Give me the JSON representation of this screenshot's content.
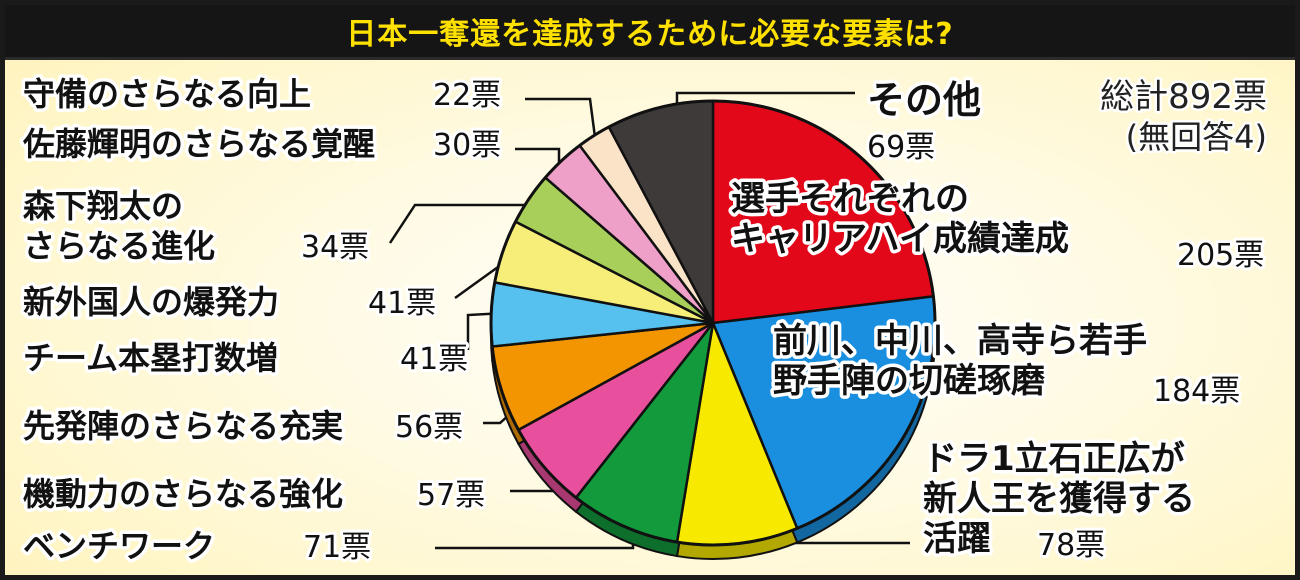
{
  "chart_data": {
    "type": "pie",
    "title": "日本一奪還を達成するために必要な要素は?",
    "total": "総計892票",
    "note": "(無回答4)",
    "unit": "票",
    "slices": [
      {
        "label": "選手それぞれのキャリアハイ成績達成",
        "lines": [
          "選手それぞれの",
          "キャリアハイ成績達成"
        ],
        "value": 205,
        "color": "#e3071a"
      },
      {
        "label": "前川、中川、高寺ら若手野手陣の切磋琢磨",
        "lines": [
          "前川、中川、高寺ら若手",
          "野手陣の切磋琢磨"
        ],
        "value": 184,
        "color": "#1a8fe0"
      },
      {
        "label": "ドラ1立石正広が新人王を獲得する活躍",
        "lines": [
          "ドラ1立石正広が",
          "新人王を獲得する",
          "活躍"
        ],
        "value": 78,
        "color": "#f7ea00"
      },
      {
        "label": "ベンチワーク",
        "lines": [
          "ベンチワーク"
        ],
        "value": 71,
        "color": "#129a3c"
      },
      {
        "label": "機動力のさらなる強化",
        "lines": [
          "機動力のさらなる強化"
        ],
        "value": 57,
        "color": "#e84f9c"
      },
      {
        "label": "先発陣のさらなる充実",
        "lines": [
          "先発陣のさらなる充実"
        ],
        "value": 56,
        "color": "#f29500"
      },
      {
        "label": "チーム本塁打数増",
        "lines": [
          "チーム本塁打数増"
        ],
        "value": 41,
        "color": "#56c0ee"
      },
      {
        "label": "新外国人の爆発力",
        "lines": [
          "新外国人の爆発力"
        ],
        "value": 41,
        "color": "#f7ee7a"
      },
      {
        "label": "森下翔太のさらなる進化",
        "lines": [
          "森下翔太の",
          "さらなる進化"
        ],
        "value": 34,
        "color": "#a8cf5a"
      },
      {
        "label": "佐藤輝明のさらなる覚醒",
        "lines": [
          "佐藤輝明のさらなる覚醒"
        ],
        "value": 30,
        "color": "#eea0c8"
      },
      {
        "label": "守備のさらなる向上",
        "lines": [
          "守備のさらなる向上"
        ],
        "value": 22,
        "color": "#fbe3c8"
      },
      {
        "label": "その他",
        "lines": [
          "その他"
        ],
        "value": 69,
        "color": "#3e3a39"
      }
    ]
  }
}
